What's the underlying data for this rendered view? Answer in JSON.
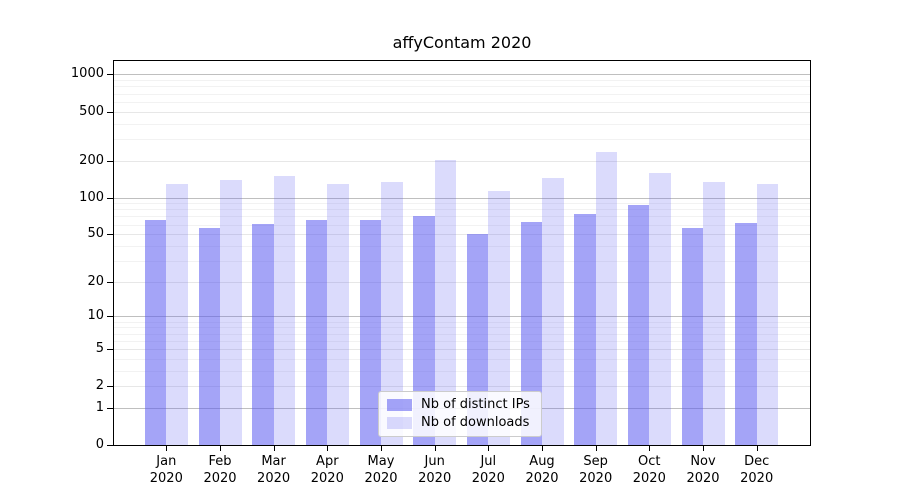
{
  "chart_data": {
    "type": "bar",
    "title": "affyContam 2020",
    "categories": [
      "Jan",
      "Feb",
      "Mar",
      "Apr",
      "May",
      "Jun",
      "Jul",
      "Aug",
      "Sep",
      "Oct",
      "Nov",
      "Dec"
    ],
    "year_label": "2020",
    "series": [
      {
        "name": "Nb of distinct IPs",
        "color": "#5a5af0",
        "alpha": 0.55,
        "values": [
          65,
          56,
          61,
          65,
          66,
          70,
          50,
          63,
          73,
          87,
          56,
          62
        ]
      },
      {
        "name": "Nb of downloads",
        "color": "#5a5af0",
        "alpha": 0.22,
        "values": [
          130,
          139,
          150,
          130,
          135,
          202,
          113,
          143,
          236,
          159,
          135,
          130
        ]
      }
    ],
    "yticks": [
      0,
      1,
      2,
      5,
      10,
      20,
      50,
      100,
      200,
      500,
      1000
    ],
    "scale": "log1p",
    "ylim": [
      0,
      1285
    ],
    "grid": true,
    "legend_position": "lower-center"
  },
  "colors": {
    "background": "#ffffff",
    "axis": "#000000",
    "grid_decade": "#bfbfbf",
    "grid_labeled": "#e7e7e7",
    "grid_minor": "#f2f2f2",
    "legend_border": "#cccccc",
    "bar_base": "#5a5af0"
  }
}
